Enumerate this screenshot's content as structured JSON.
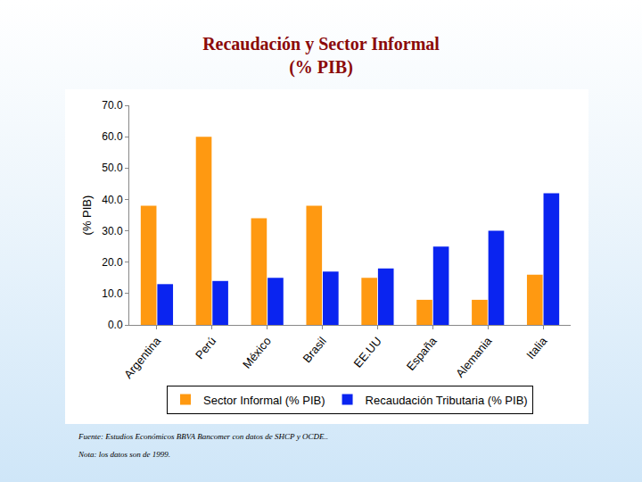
{
  "chart_data": {
    "type": "bar",
    "title": "Recaudación y Sector Informal",
    "subtitle": "(% PIB)",
    "y_label": "(% PIB)",
    "categories": [
      "Argentina",
      "Perú",
      "México",
      "Brasil",
      "EE.UU",
      "España",
      "Alemania",
      "Italia"
    ],
    "series": [
      {
        "name": "Sector Informal (% PIB)",
        "color": "#ff9911",
        "values": [
          38,
          60,
          34,
          38,
          15,
          8,
          8,
          16
        ]
      },
      {
        "name": "Recaudación Tributaria (% PIB)",
        "color": "#0a24f0",
        "values": [
          13,
          14,
          15,
          17,
          18,
          25,
          30,
          42
        ]
      }
    ],
    "ylim": [
      0,
      70
    ],
    "yticks": [
      {
        "value": 0,
        "label": "0.0"
      },
      {
        "value": 10,
        "label": "10.0"
      },
      {
        "value": 20,
        "label": "20.0"
      },
      {
        "value": 30,
        "label": "30.0"
      },
      {
        "value": 40,
        "label": "40.0"
      },
      {
        "value": 50,
        "label": "50.0"
      },
      {
        "value": 60,
        "label": "60.0"
      },
      {
        "value": 70,
        "label": "70.0"
      }
    ],
    "grid": false,
    "legend": "bottom",
    "data_labels": false,
    "annotations": [
      "Fuente: Estudios Económicos BBVA Bancomer con datos de SHCP y OCDE..",
      "Nota: los datos son de 1999."
    ]
  }
}
